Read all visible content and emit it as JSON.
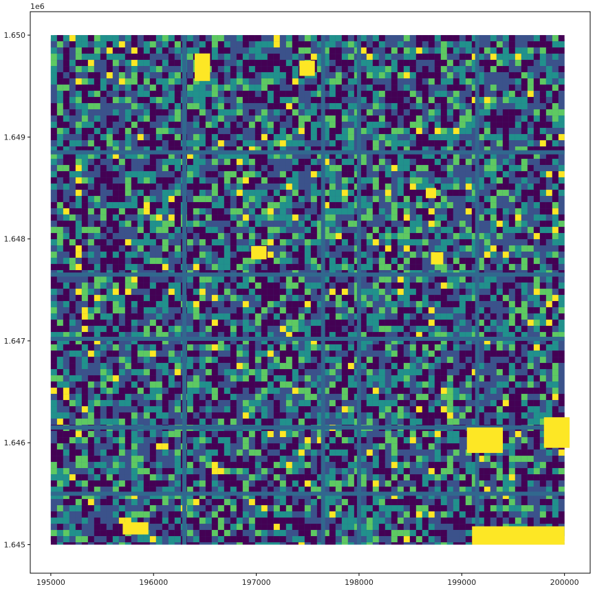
{
  "chart_data": {
    "type": "scatter",
    "title": "",
    "xlabel": "",
    "ylabel": "",
    "xlim": [
      194800,
      200250
    ],
    "ylim": [
      1644720,
      1650230
    ],
    "x_ticks": [
      195000,
      196000,
      197000,
      198000,
      199000,
      200000
    ],
    "x_tick_labels": [
      "195000",
      "196000",
      "197000",
      "198000",
      "199000",
      "200000"
    ],
    "y_ticks": [
      1645000,
      1646000,
      1647000,
      1648000,
      1649000,
      1650000
    ],
    "y_tick_labels": [
      "1.645",
      "1.646",
      "1.647",
      "1.648",
      "1.649",
      "1.650"
    ],
    "y_offset_label": "1e6",
    "data_extent": {
      "x": [
        195000,
        200000
      ],
      "y": [
        1645000,
        1650000
      ]
    },
    "colormap": "viridis",
    "colormap_colors": [
      "#440154",
      "#3b528b",
      "#21918c",
      "#5ec962",
      "#fde725"
    ],
    "grid": false,
    "legend": "none",
    "description_of_points": "dense point cloud colored by intensity (aerial imagery of urban blocks)"
  }
}
